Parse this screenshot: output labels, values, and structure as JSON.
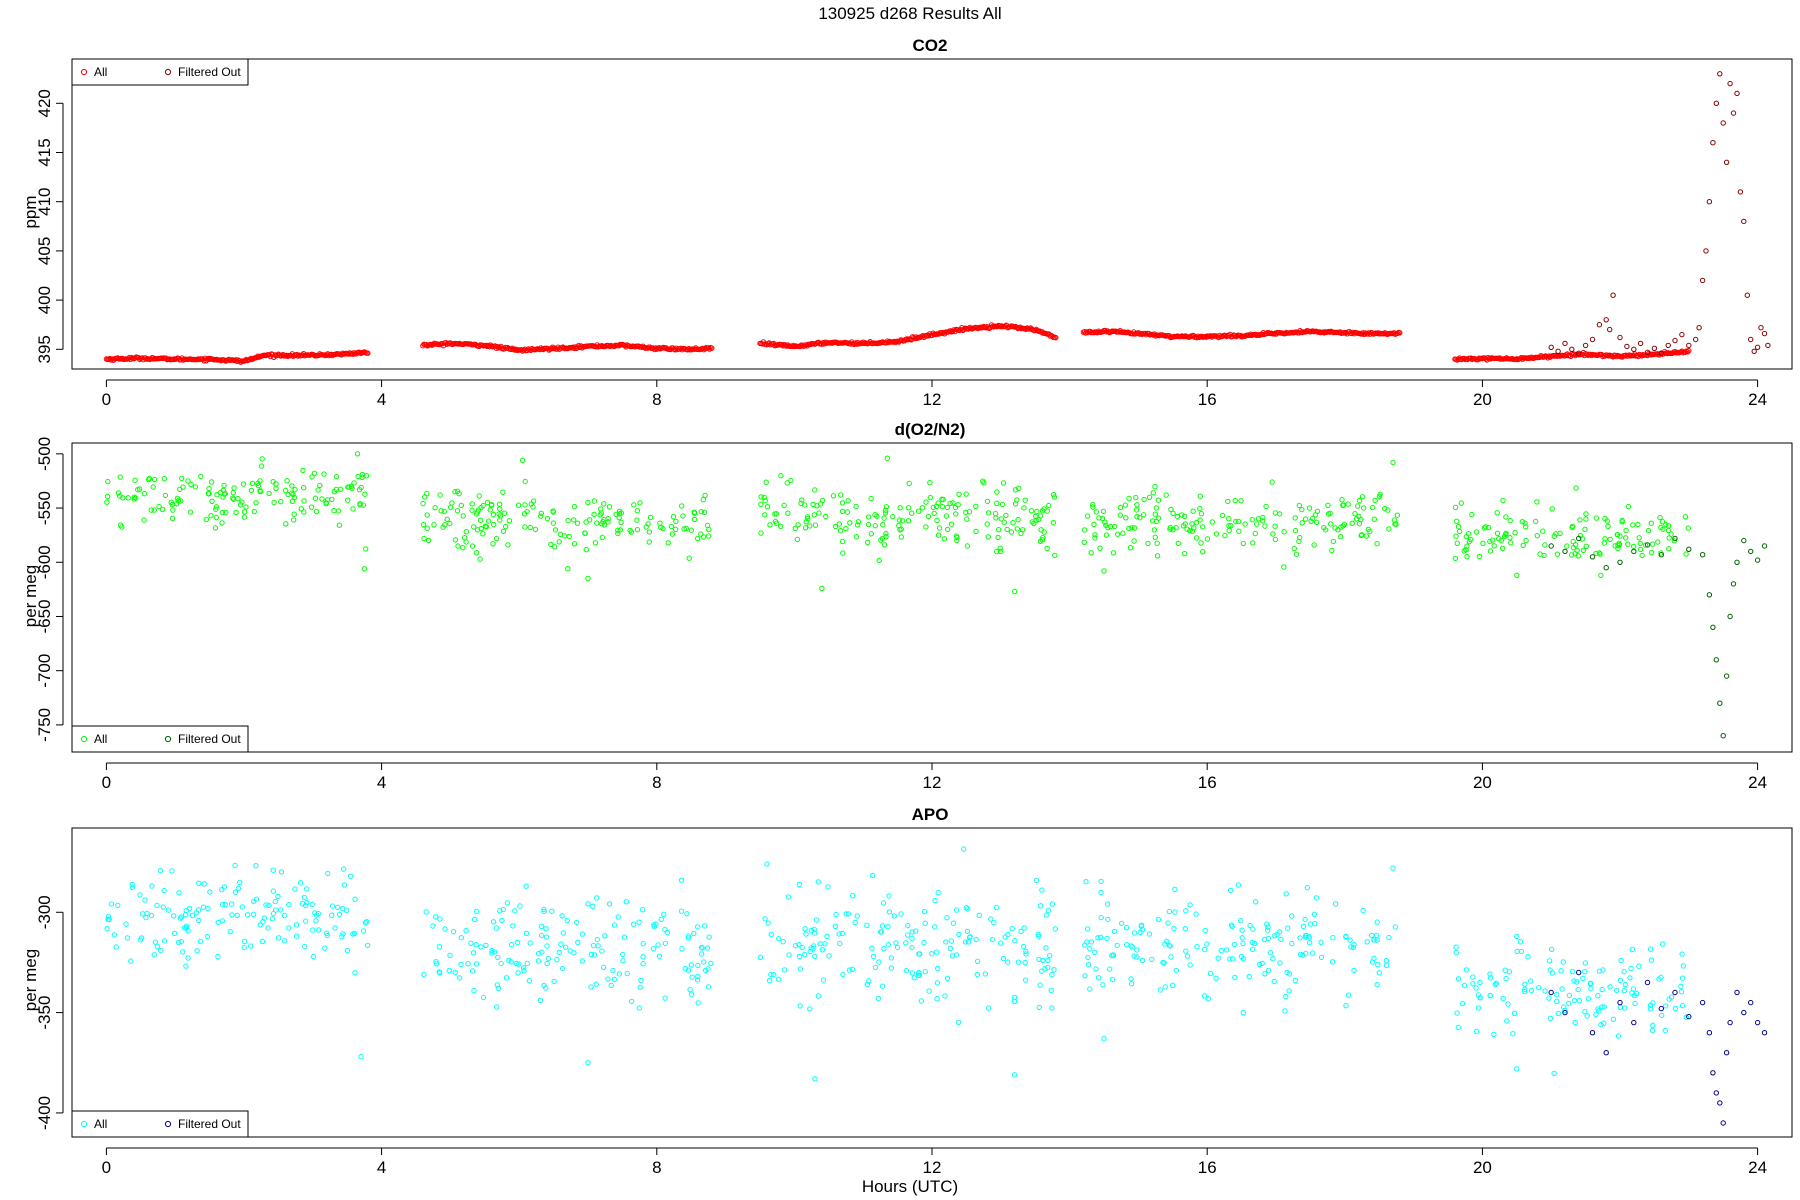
{
  "figure": {
    "title": "130925   d268   Results All",
    "xlabel": "Hours (UTC)"
  },
  "colors": {
    "co2_all": "#ff0000",
    "co2_filtered": "#8b0000",
    "o2_all": "#00ff00",
    "o2_filtered": "#006400",
    "apo_all": "#00ffff",
    "apo_filtered": "#00008b",
    "axis": "#000000"
  },
  "chart_data": [
    {
      "type": "scatter",
      "title": "CO2",
      "xlabel": "",
      "ylabel": "ppm",
      "xlim": [
        -0.5,
        24.5
      ],
      "ylim": [
        393,
        424.5
      ],
      "xticks": [
        "0",
        "4",
        "8",
        "12",
        "16",
        "20",
        "24"
      ],
      "yticks": [
        "395",
        "400",
        "405",
        "410",
        "415",
        "420"
      ],
      "legend": [
        "All",
        "Filtered Out"
      ],
      "legend_position": "top-left",
      "series": [
        {
          "name": "All",
          "segments": [
            {
              "x": [
                0.0,
                0.5,
                1.0,
                1.5,
                2.0,
                2.3,
                2.6,
                3.0,
                3.4,
                3.8
              ],
              "y": [
                394.0,
                394.1,
                394.0,
                394.0,
                393.8,
                394.4,
                394.4,
                394.4,
                394.5,
                394.7
              ]
            },
            {
              "x": [
                4.6,
                5.0,
                5.5,
                6.0,
                6.5,
                7.0,
                7.5,
                8.0,
                8.5,
                8.8
              ],
              "y": [
                395.4,
                395.6,
                395.4,
                394.9,
                395.1,
                395.3,
                395.4,
                395.1,
                395.0,
                395.1
              ]
            },
            {
              "x": [
                9.5,
                10.0,
                10.5,
                11.0,
                11.5,
                12.0,
                12.5,
                13.0,
                13.5,
                13.8
              ],
              "y": [
                395.6,
                395.3,
                395.7,
                395.6,
                395.8,
                396.5,
                397.1,
                397.4,
                397.0,
                396.2
              ]
            },
            {
              "x": [
                14.2,
                14.6,
                15.0,
                15.5,
                16.0,
                16.5,
                17.0,
                17.5,
                18.0,
                18.5,
                18.8
              ],
              "y": [
                396.7,
                396.8,
                396.6,
                396.3,
                396.3,
                396.4,
                396.6,
                396.8,
                396.7,
                396.6,
                396.6
              ]
            },
            {
              "x": [
                19.6,
                20.0,
                20.4,
                20.8,
                21.0,
                21.5,
                22.0,
                22.5,
                23.0
              ],
              "y": [
                394.0,
                394.1,
                394.0,
                394.2,
                394.3,
                394.5,
                394.3,
                394.5,
                394.8
              ]
            }
          ]
        },
        {
          "name": "Filtered Out",
          "points": [
            [
              21.0,
              395.2
            ],
            [
              21.1,
              394.8
            ],
            [
              21.2,
              395.6
            ],
            [
              21.3,
              395.0
            ],
            [
              21.4,
              394.6
            ],
            [
              21.5,
              395.4
            ],
            [
              21.6,
              396.0
            ],
            [
              21.7,
              397.5
            ],
            [
              21.8,
              398.0
            ],
            [
              21.85,
              397.0
            ],
            [
              21.9,
              400.5
            ],
            [
              22.0,
              396.2
            ],
            [
              22.1,
              395.3
            ],
            [
              22.2,
              395.0
            ],
            [
              22.3,
              395.6
            ],
            [
              22.4,
              394.7
            ],
            [
              22.5,
              395.1
            ],
            [
              22.6,
              394.6
            ],
            [
              22.7,
              395.4
            ],
            [
              22.8,
              395.9
            ],
            [
              22.9,
              396.5
            ],
            [
              23.0,
              395.4
            ],
            [
              23.1,
              396.0
            ],
            [
              23.15,
              397.2
            ],
            [
              23.2,
              402.0
            ],
            [
              23.25,
              405.0
            ],
            [
              23.3,
              410.0
            ],
            [
              23.35,
              416.0
            ],
            [
              23.4,
              420.0
            ],
            [
              23.45,
              423.0
            ],
            [
              23.5,
              418.0
            ],
            [
              23.55,
              414.0
            ],
            [
              23.6,
              422.0
            ],
            [
              23.65,
              419.0
            ],
            [
              23.7,
              421.0
            ],
            [
              23.75,
              411.0
            ],
            [
              23.8,
              408.0
            ],
            [
              23.85,
              400.5
            ],
            [
              23.9,
              396.0
            ],
            [
              23.95,
              394.8
            ],
            [
              24.0,
              395.2
            ],
            [
              24.05,
              397.2
            ],
            [
              24.1,
              396.6
            ],
            [
              24.15,
              395.4
            ]
          ]
        }
      ]
    },
    {
      "type": "scatter",
      "title": "d(O2/N2)",
      "xlabel": "",
      "ylabel": "per meg",
      "xlim": [
        -0.5,
        24.5
      ],
      "ylim": [
        -775,
        -490
      ],
      "xticks": [
        "0",
        "4",
        "8",
        "12",
        "16",
        "20",
        "24"
      ],
      "yticks": [
        "-500",
        "-550",
        "-600",
        "-650",
        "-700",
        "-750"
      ],
      "legend": [
        "All",
        "Filtered Out"
      ],
      "legend_position": "bottom-left",
      "series": [
        {
          "name": "All",
          "segments": [
            {
              "x0": 0.0,
              "x1": 3.8,
              "center": -538,
              "spread": 14,
              "n": 150,
              "outliers": [
                [
                  3.65,
                  -500
                ],
                [
                  3.75,
                  -606
                ]
              ]
            },
            {
              "x0": 4.6,
              "x1": 8.8,
              "center": -560,
              "spread": 14,
              "n": 170,
              "outliers": [
                [
                  7.0,
                  -615
                ],
                [
                  6.05,
                  -506
                ]
              ]
            },
            {
              "x0": 9.5,
              "x1": 13.8,
              "center": -558,
              "spread": 16,
              "n": 180,
              "outliers": [
                [
                  10.4,
                  -624
                ],
                [
                  13.2,
                  -627
                ],
                [
                  11.35,
                  -504
                ]
              ]
            },
            {
              "x0": 14.2,
              "x1": 18.8,
              "center": -562,
              "spread": 14,
              "n": 180,
              "outliers": [
                [
                  14.5,
                  -608
                ],
                [
                  18.7,
                  -508
                ]
              ]
            },
            {
              "x0": 19.6,
              "x1": 23.0,
              "center": -577,
              "spread": 12,
              "n": 130,
              "outliers": [
                [
                  20.5,
                  -612
                ],
                [
                  20.3,
                  -543
                ]
              ]
            }
          ]
        },
        {
          "name": "Filtered Out",
          "points": [
            [
              21.0,
              -585
            ],
            [
              21.2,
              -590
            ],
            [
              21.4,
              -578
            ],
            [
              21.6,
              -595
            ],
            [
              21.8,
              -605
            ],
            [
              22.0,
              -600
            ],
            [
              22.2,
              -590
            ],
            [
              22.4,
              -584
            ],
            [
              22.6,
              -593
            ],
            [
              22.8,
              -578
            ],
            [
              23.0,
              -588
            ],
            [
              23.2,
              -593
            ],
            [
              23.3,
              -630
            ],
            [
              23.35,
              -660
            ],
            [
              23.4,
              -690
            ],
            [
              23.45,
              -730
            ],
            [
              23.5,
              -760
            ],
            [
              23.55,
              -705
            ],
            [
              23.6,
              -650
            ],
            [
              23.65,
              -620
            ],
            [
              23.7,
              -600
            ],
            [
              23.8,
              -580
            ],
            [
              23.9,
              -590
            ],
            [
              24.0,
              -598
            ],
            [
              24.1,
              -585
            ]
          ]
        }
      ]
    },
    {
      "type": "scatter",
      "title": "APO",
      "xlabel": "Hours (UTC)",
      "ylabel": "per meg",
      "xlim": [
        -0.5,
        24.5
      ],
      "ylim": [
        -412,
        -258
      ],
      "xticks": [
        "0",
        "4",
        "8",
        "12",
        "16",
        "20",
        "24"
      ],
      "yticks": [
        "-300",
        "-350",
        "-400"
      ],
      "legend": [
        "All",
        "Filtered Out"
      ],
      "legend_position": "bottom-left",
      "series": [
        {
          "name": "All",
          "segments": [
            {
              "x0": 0.0,
              "x1": 3.8,
              "center": -302,
              "spread": 12,
              "n": 150,
              "outliers": [
                [
                  3.7,
                  -372
                ],
                [
                  3.55,
                  -282
                ]
              ]
            },
            {
              "x0": 4.6,
              "x1": 8.8,
              "center": -318,
              "spread": 13,
              "n": 170,
              "outliers": [
                [
                  7.0,
                  -375
                ],
                [
                  6.1,
                  -287
                ]
              ]
            },
            {
              "x0": 9.5,
              "x1": 13.8,
              "center": -317,
              "spread": 14,
              "n": 180,
              "outliers": [
                [
                  10.3,
                  -383
                ],
                [
                  13.2,
                  -381
                ],
                [
                  9.6,
                  -276
                ]
              ]
            },
            {
              "x0": 14.2,
              "x1": 18.8,
              "center": -316,
              "spread": 13,
              "n": 180,
              "outliers": [
                [
                  14.5,
                  -363
                ],
                [
                  18.7,
                  -278
                ]
              ]
            },
            {
              "x0": 19.6,
              "x1": 23.0,
              "center": -340,
              "spread": 12,
              "n": 130,
              "outliers": [
                [
                  20.5,
                  -378
                ],
                [
                  20.5,
                  -312
                ]
              ]
            }
          ]
        },
        {
          "name": "Filtered Out",
          "points": [
            [
              21.0,
              -340
            ],
            [
              21.2,
              -350
            ],
            [
              21.4,
              -330
            ],
            [
              21.6,
              -360
            ],
            [
              21.8,
              -370
            ],
            [
              22.0,
              -345
            ],
            [
              22.2,
              -355
            ],
            [
              22.4,
              -335
            ],
            [
              22.6,
              -348
            ],
            [
              22.8,
              -340
            ],
            [
              23.0,
              -352
            ],
            [
              23.2,
              -345
            ],
            [
              23.3,
              -360
            ],
            [
              23.35,
              -380
            ],
            [
              23.4,
              -390
            ],
            [
              23.45,
              -395
            ],
            [
              23.5,
              -405
            ],
            [
              23.55,
              -370
            ],
            [
              23.6,
              -355
            ],
            [
              23.7,
              -340
            ],
            [
              23.8,
              -350
            ],
            [
              23.9,
              -345
            ],
            [
              24.0,
              -355
            ],
            [
              24.1,
              -360
            ]
          ]
        }
      ]
    }
  ]
}
